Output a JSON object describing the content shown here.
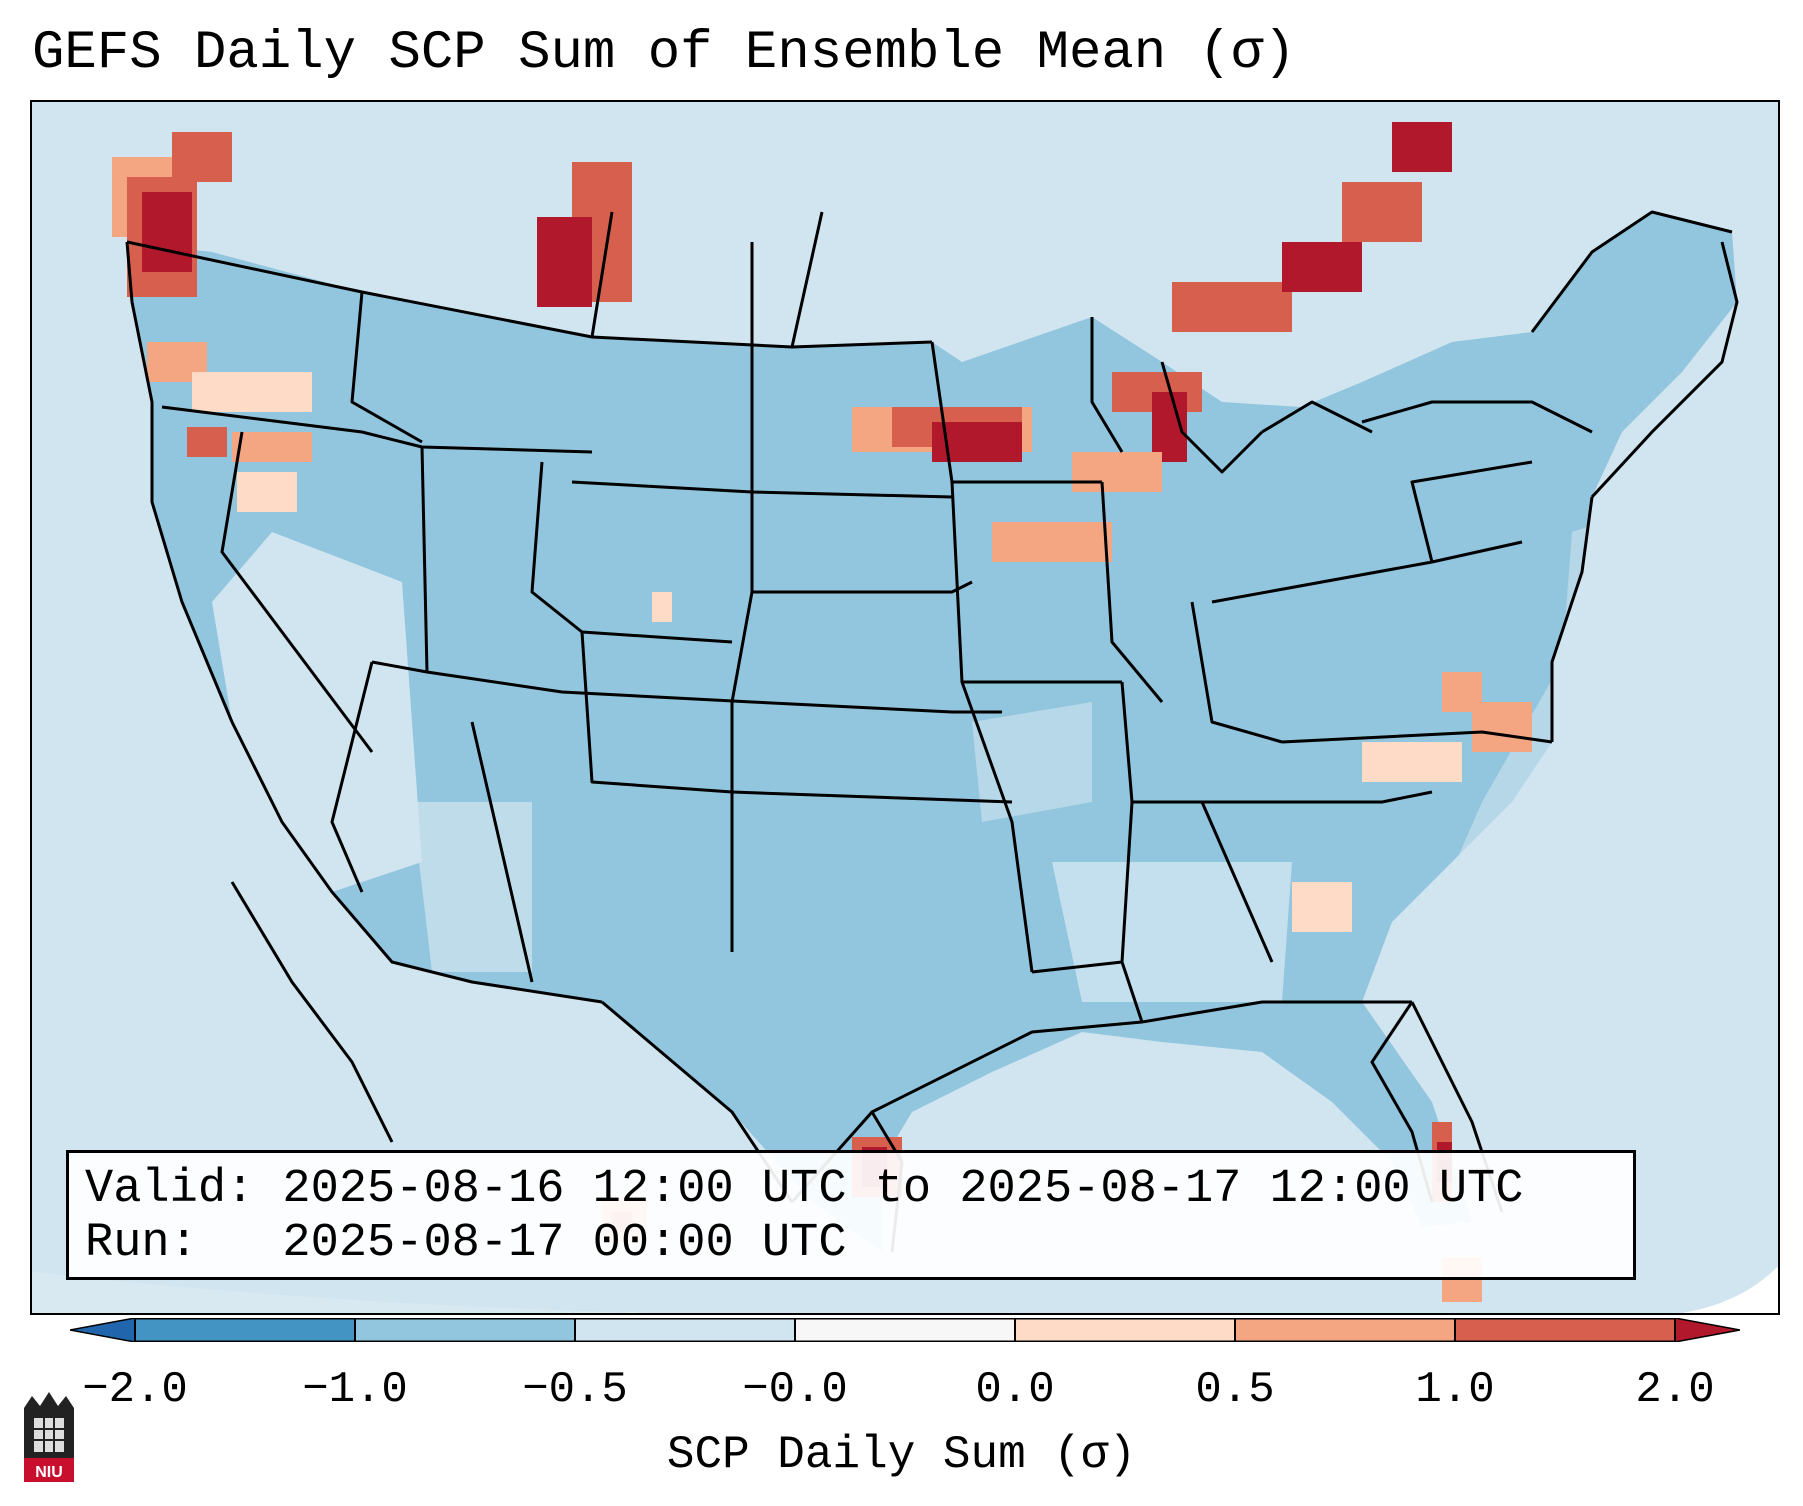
{
  "title": "GEFS Daily SCP Sum of Ensemble Mean (σ)",
  "map": {
    "region": "Continental United States",
    "ocean_color": "#d1e5f0",
    "land_color": "#92c5de",
    "border_color": "#000000"
  },
  "info": {
    "valid_line": "Valid: 2025-08-16 12:00 UTC to 2025-08-17 12:00 UTC",
    "run_line": "Run:   2025-08-17 00:00 UTC"
  },
  "colorbar": {
    "label": "SCP Daily Sum (σ)",
    "ticks": [
      "−2.0",
      "−1.0",
      "−0.5",
      "−0.0",
      "0.0",
      "0.5",
      "1.0",
      "2.0"
    ],
    "segment_colors": [
      "#4393c3",
      "#92c5de",
      "#d1e5f0",
      "#f7f7f7",
      "#fddbc7",
      "#f4a582",
      "#d6604d"
    ],
    "extend_min_color": "#2166ac",
    "extend_max_color": "#b2182b"
  },
  "logo": {
    "text": "NIU"
  }
}
